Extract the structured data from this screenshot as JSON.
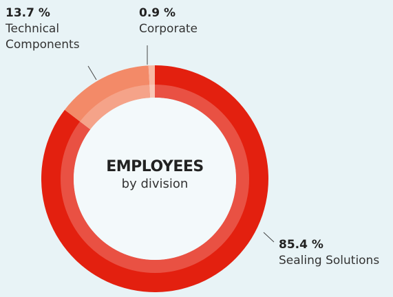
{
  "chart_data": {
    "type": "donut",
    "title": "EMPLOYEES",
    "subtitle": "by division",
    "categories": [
      "Sealing Solutions",
      "Technical Components",
      "Corporate"
    ],
    "values": [
      85.4,
      13.7,
      0.9
    ],
    "value_labels": [
      "85.4 %",
      "13.7 %",
      "0.9 %"
    ],
    "colors": [
      "#e3200f",
      "#f38a68",
      "#f8b7a2"
    ]
  }
}
